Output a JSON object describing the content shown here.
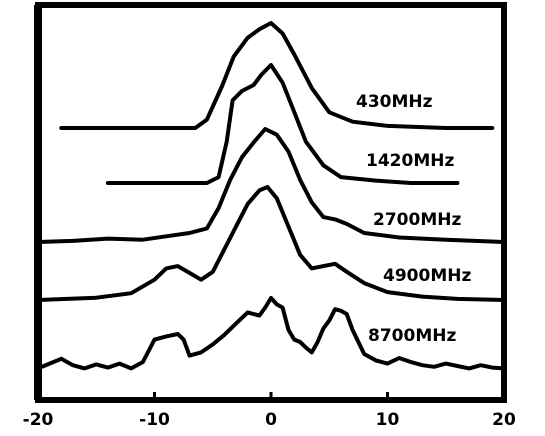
{
  "chart_data": {
    "type": "line",
    "title": "",
    "xlabel": "",
    "ylabel": "",
    "xlim": [
      -20,
      20
    ],
    "xticks": [
      "-20",
      "-10",
      "0",
      "10",
      "20"
    ],
    "grid": false,
    "legend": "none",
    "line_color": "#000000",
    "series": [
      {
        "name": "430MHz",
        "x": [
          -18,
          -10,
          -6.5,
          -5.5,
          -4.2,
          -3.2,
          -2,
          -1,
          0,
          1,
          2,
          3.5,
          5,
          7,
          10,
          15,
          19
        ],
        "y": [
          0,
          0,
          0,
          0.08,
          0.4,
          0.68,
          0.86,
          0.94,
          1.0,
          0.9,
          0.7,
          0.38,
          0.15,
          0.06,
          0.02,
          0,
          0
        ]
      },
      {
        "name": "1420MHz",
        "x": [
          -14,
          -8,
          -5.5,
          -4.5,
          -3.8,
          -3.3,
          -2.5,
          -1.5,
          -0.8,
          0,
          1,
          2,
          3,
          4.5,
          6,
          9,
          12,
          16
        ],
        "y": [
          0,
          0,
          0,
          0.05,
          0.35,
          0.7,
          0.78,
          0.83,
          0.92,
          1.0,
          0.85,
          0.6,
          0.35,
          0.15,
          0.05,
          0.02,
          0,
          0
        ]
      },
      {
        "name": "2700MHz",
        "x": [
          -20,
          -17,
          -14,
          -11,
          -9,
          -7,
          -5.5,
          -4.5,
          -3.5,
          -2.5,
          -1.5,
          -0.5,
          0.5,
          1.5,
          2.5,
          3.5,
          4.5,
          5.5,
          6.5,
          8,
          11,
          15,
          20
        ],
        "y": [
          0,
          0.01,
          0.03,
          0.02,
          0.05,
          0.08,
          0.12,
          0.3,
          0.55,
          0.75,
          0.88,
          1.0,
          0.95,
          0.8,
          0.55,
          0.35,
          0.22,
          0.2,
          0.16,
          0.08,
          0.04,
          0.02,
          0
        ]
      },
      {
        "name": "4900MHz",
        "x": [
          -20,
          -15,
          -12,
          -10,
          -9,
          -8,
          -7,
          -6,
          -5,
          -4,
          -3,
          -2,
          -1,
          -0.3,
          0.5,
          1.5,
          2.5,
          3.5,
          4.5,
          5.5,
          6.5,
          8,
          10,
          13,
          16,
          20
        ],
        "y": [
          0,
          0.02,
          0.06,
          0.18,
          0.28,
          0.3,
          0.24,
          0.18,
          0.25,
          0.45,
          0.65,
          0.85,
          0.97,
          1.0,
          0.9,
          0.65,
          0.4,
          0.28,
          0.3,
          0.32,
          0.25,
          0.15,
          0.07,
          0.03,
          0.01,
          0
        ]
      },
      {
        "name": "8700MHz",
        "x": [
          -20,
          -19,
          -18,
          -17,
          -16,
          -15,
          -14,
          -13,
          -12,
          -11,
          -10,
          -9,
          -8,
          -7.5,
          -7,
          -6,
          -5,
          -4,
          -3,
          -2,
          -1,
          -0.5,
          0,
          0.5,
          1,
          1.5,
          2,
          2.5,
          3,
          3.5,
          4,
          4.5,
          5,
          5.5,
          6,
          6.5,
          7,
          7.5,
          8,
          9,
          10,
          11,
          12,
          13,
          14,
          15,
          16,
          17,
          18,
          19,
          20
        ],
        "y": [
          0.02,
          0.08,
          0.14,
          0.06,
          0.02,
          0.07,
          0.03,
          0.08,
          0.02,
          0.1,
          0.38,
          0.42,
          0.45,
          0.38,
          0.18,
          0.22,
          0.32,
          0.44,
          0.58,
          0.72,
          0.68,
          0.78,
          0.9,
          0.82,
          0.78,
          0.5,
          0.38,
          0.35,
          0.28,
          0.22,
          0.35,
          0.52,
          0.62,
          0.76,
          0.74,
          0.7,
          0.5,
          0.35,
          0.2,
          0.12,
          0.08,
          0.15,
          0.1,
          0.06,
          0.04,
          0.08,
          0.05,
          0.02,
          0.06,
          0.03,
          0.02
        ]
      }
    ]
  }
}
